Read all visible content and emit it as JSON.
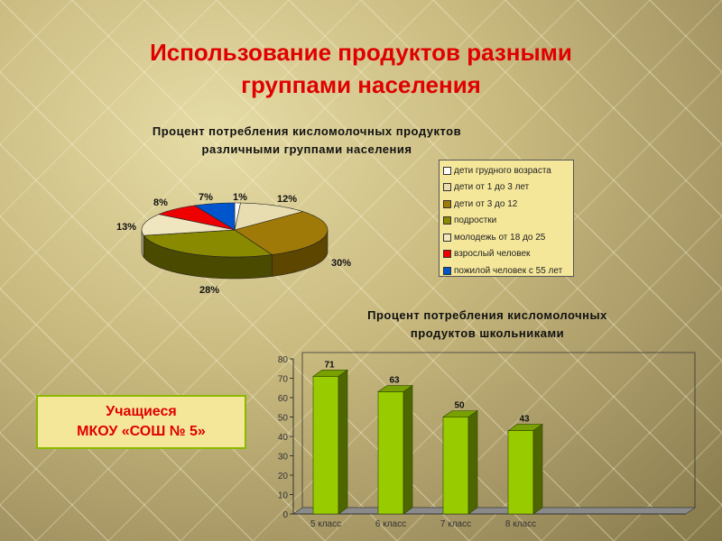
{
  "slide_title_line1": "Использование продуктов разными",
  "slide_title_line2": "группами населения",
  "badge": {
    "line1": "Учащиеся",
    "line2": "МКОУ «СОШ № 5»"
  },
  "chart_data": [
    {
      "type": "pie",
      "title_line1": "Процент потребления кисломолочных продуктов",
      "title_line2": "различными группами населения",
      "legend_placement": "right",
      "categories": [
        "дети грудного возраста",
        "дети от 1 до 3 лет",
        "дети от 3 до 12",
        "подростки",
        "молодежь от 18 до 25",
        "взрослый человек",
        "пожилой человек с 55 лет"
      ],
      "values": [
        1,
        12,
        30,
        28,
        13,
        8,
        7
      ],
      "labels": [
        "1%",
        "12%",
        "30%",
        "28%",
        "13%",
        "8%",
        "7%"
      ],
      "colors": [
        "#ffffff",
        "#e8ddb0",
        "#a07a08",
        "#8a8a00",
        "#efe6c0",
        "#ee0000",
        "#0055cc"
      ],
      "side_colors": [
        "#cfcfcf",
        "#a89e70",
        "#5c4600",
        "#4a4a00",
        "#b0a880",
        "#990000",
        "#003380"
      ]
    },
    {
      "type": "bar",
      "title_line1": "Процент потребления кисломолочных",
      "title_line2": "продуктов школьниками",
      "categories": [
        "5 класс",
        "6 класс",
        "7 класс",
        "8 класс"
      ],
      "values": [
        71,
        63,
        50,
        43
      ],
      "ylim": [
        0,
        80
      ],
      "yticks": [
        "0",
        "10",
        "20",
        "30",
        "40",
        "50",
        "60",
        "70",
        "80"
      ],
      "bar_color": "#99cc00",
      "grid": false
    }
  ]
}
